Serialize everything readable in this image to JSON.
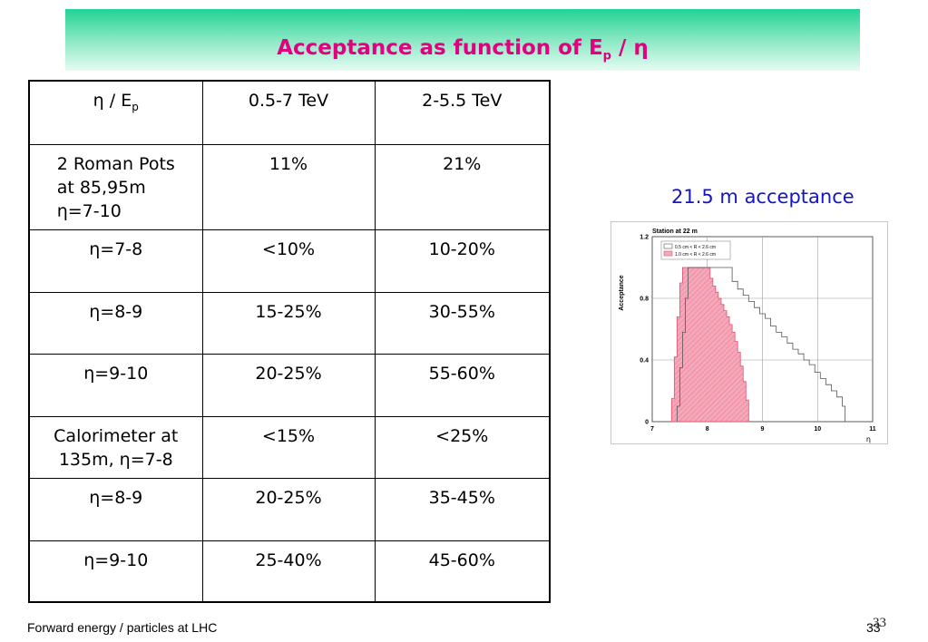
{
  "slide": {
    "title_prefix": "Acceptance as function of E",
    "title_sub": "p",
    "title_suffix": " / η",
    "footer_left": "Forward energy / particles at LHC",
    "page_number_a": "33",
    "page_number_b": "33"
  },
  "table": {
    "header": {
      "c1_main": "η / E",
      "c1_sub": "p",
      "c2": "0.5-7 TeV",
      "c3": "2-5.5 TeV"
    },
    "rows": [
      {
        "label": "2 Roman Pots\n  at 85,95m\n  η=7-10",
        "v1": "11%",
        "v2": "21%"
      },
      {
        "label": "η=7-8",
        "v1": "<10%",
        "v2": "10-20%"
      },
      {
        "label": "η=8-9",
        "v1": "15-25%",
        "v2": "30-55%"
      },
      {
        "label": "η=9-10",
        "v1": "20-25%",
        "v2": "55-60%"
      },
      {
        "label": "Calorimeter at\n135m, η=7-8",
        "v1": "<15%",
        "v2": "<25%"
      },
      {
        "label": "η=8-9",
        "v1": "20-25%",
        "v2": "35-45%"
      },
      {
        "label": "η=9-10",
        "v1": "25-40%",
        "v2": "45-60%"
      }
    ]
  },
  "plot_caption": "21.5 m acceptance",
  "chart_data": {
    "type": "histogram",
    "title": "Station at 22 m",
    "xlabel": "η",
    "ylabel": "Acceptance",
    "xlim": [
      7,
      11
    ],
    "ylim": [
      0,
      1.2
    ],
    "xticks": [
      "7",
      "8",
      "9",
      "10",
      "11"
    ],
    "yticks": [
      "0",
      "0.4",
      "0.8",
      "1.2"
    ],
    "grid": true,
    "legend_position": "top-left",
    "series": [
      {
        "name": "0.5 cm < R < 2.6 cm",
        "color": "#555555",
        "fill": "none",
        "bins": [
          [
            7.45,
            7.5,
            0.1
          ],
          [
            7.5,
            7.55,
            0.35
          ],
          [
            7.55,
            7.6,
            0.58
          ],
          [
            7.6,
            7.65,
            0.8
          ],
          [
            7.65,
            7.7,
            1.0
          ],
          [
            7.7,
            8.45,
            1.0
          ],
          [
            8.45,
            8.55,
            0.91
          ],
          [
            8.55,
            8.65,
            0.86
          ],
          [
            8.65,
            8.75,
            0.82
          ],
          [
            8.75,
            8.85,
            0.78
          ],
          [
            8.85,
            8.95,
            0.74
          ],
          [
            8.95,
            9.05,
            0.7
          ],
          [
            9.05,
            9.15,
            0.67
          ],
          [
            9.15,
            9.25,
            0.62
          ],
          [
            9.25,
            9.35,
            0.58
          ],
          [
            9.35,
            9.45,
            0.55
          ],
          [
            9.45,
            9.55,
            0.51
          ],
          [
            9.55,
            9.65,
            0.47
          ],
          [
            9.65,
            9.75,
            0.44
          ],
          [
            9.75,
            9.85,
            0.4
          ],
          [
            9.85,
            9.95,
            0.37
          ],
          [
            9.95,
            10.05,
            0.32
          ],
          [
            10.05,
            10.15,
            0.28
          ],
          [
            10.15,
            10.25,
            0.24
          ],
          [
            10.25,
            10.35,
            0.2
          ],
          [
            10.35,
            10.45,
            0.16
          ],
          [
            10.45,
            10.5,
            0.1
          ]
        ]
      },
      {
        "name": "1.0 cm < R < 2.6 cm",
        "color": "#e0506e",
        "fill": "#f5a8ba",
        "bins": [
          [
            7.35,
            7.4,
            0.15
          ],
          [
            7.4,
            7.45,
            0.42
          ],
          [
            7.45,
            7.5,
            0.68
          ],
          [
            7.5,
            7.55,
            0.9
          ],
          [
            7.55,
            7.6,
            1.0
          ],
          [
            7.6,
            8.05,
            1.0
          ],
          [
            8.05,
            8.1,
            0.93
          ],
          [
            8.1,
            8.15,
            0.88
          ],
          [
            8.15,
            8.2,
            0.84
          ],
          [
            8.2,
            8.25,
            0.8
          ],
          [
            8.25,
            8.3,
            0.76
          ],
          [
            8.3,
            8.35,
            0.72
          ],
          [
            8.35,
            8.4,
            0.68
          ],
          [
            8.4,
            8.45,
            0.63
          ],
          [
            8.45,
            8.5,
            0.58
          ],
          [
            8.5,
            8.55,
            0.52
          ],
          [
            8.55,
            8.6,
            0.45
          ],
          [
            8.6,
            8.65,
            0.36
          ],
          [
            8.65,
            8.7,
            0.26
          ],
          [
            8.7,
            8.75,
            0.14
          ]
        ]
      }
    ]
  }
}
